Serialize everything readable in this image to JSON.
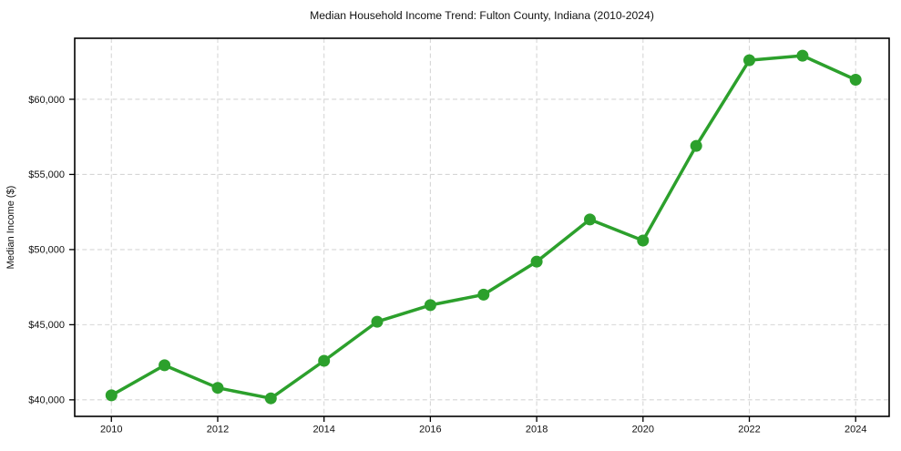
{
  "chart_data": {
    "type": "line",
    "title": "Median Household Income Trend: Fulton County, Indiana (2010-2024)",
    "xlabel": "",
    "ylabel": "Median Income ($)",
    "series": [
      {
        "name": "Median household income",
        "x": [
          2010,
          2011,
          2012,
          2013,
          2014,
          2015,
          2016,
          2017,
          2018,
          2019,
          2020,
          2021,
          2022,
          2023,
          2024
        ],
        "values": [
          40300,
          42300,
          40800,
          40100,
          42600,
          45200,
          46300,
          47000,
          49200,
          52000,
          50600,
          56900,
          62600,
          62900,
          61300
        ]
      }
    ],
    "x_ticks": [
      2010,
      2012,
      2014,
      2016,
      2018,
      2020,
      2022,
      2024
    ],
    "x_tick_labels": [
      "2010",
      "2012",
      "2014",
      "2016",
      "2018",
      "2020",
      "2022",
      "2024"
    ],
    "y_ticks": [
      40000,
      45000,
      50000,
      55000,
      60000
    ],
    "y_tick_labels": [
      "$40,000",
      "$45,000",
      "$50,000",
      "$55,000",
      "$60,000"
    ],
    "xlim": [
      2009.31,
      2024.63
    ],
    "ylim": [
      38900,
      64060
    ],
    "grid": true,
    "grid_style": "dashed",
    "legend_position": "none",
    "colors": {
      "line": "#2ca02c",
      "marker": "#2ca02c",
      "grid": "#d6d6d6",
      "spine": "#000000",
      "text": "#111111",
      "background": "#ffffff"
    },
    "marker": "circle"
  }
}
